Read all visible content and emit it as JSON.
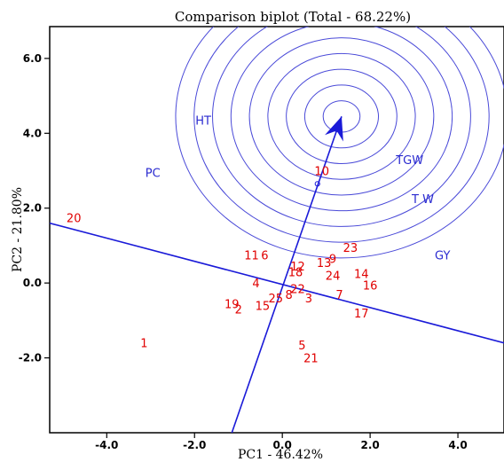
{
  "chart_data": {
    "type": "scatter",
    "title": "Comparison biplot (Total - 68.22%)",
    "xlabel": "PC1 - 46.42%",
    "ylabel": "PC2 - 21.80%",
    "xlim": [
      -5.3,
      5.05
    ],
    "ylim": [
      -4.0,
      6.85
    ],
    "xticks": [
      -4.0,
      -2.0,
      0.0,
      2.0,
      4.0
    ],
    "xtick_labels": [
      "-4.0",
      "-2.0",
      "0.0",
      "2.0",
      "4.0"
    ],
    "yticks": [
      -2.0,
      0.0,
      2.0,
      4.0,
      6.0
    ],
    "ytick_labels": [
      "-2.0",
      "0.0",
      "2.0",
      "4.0",
      "6.0"
    ],
    "colors": {
      "genotype": "#e00000",
      "trait": "#2a2ad0",
      "axis_line": "#1a1ad8",
      "circle": "#4a4ad8"
    },
    "genotypes": [
      {
        "label": "1",
        "x": -3.15,
        "y": -1.6
      },
      {
        "label": "2",
        "x": -1.0,
        "y": -0.7
      },
      {
        "label": "3",
        "x": 0.6,
        "y": -0.4
      },
      {
        "label": "4",
        "x": -0.6,
        "y": 0.0
      },
      {
        "label": "5",
        "x": 0.45,
        "y": -1.65
      },
      {
        "label": "6",
        "x": -0.4,
        "y": 0.75
      },
      {
        "label": "7",
        "x": 1.3,
        "y": -0.3
      },
      {
        "label": "8",
        "x": 0.15,
        "y": -0.3
      },
      {
        "label": "9",
        "x": 1.15,
        "y": 0.65
      },
      {
        "label": "10",
        "x": 0.9,
        "y": 3.0
      },
      {
        "label": "11",
        "x": -0.7,
        "y": 0.75
      },
      {
        "label": "12",
        "x": 0.35,
        "y": 0.45
      },
      {
        "label": "13",
        "x": 0.95,
        "y": 0.55
      },
      {
        "label": "14",
        "x": 1.8,
        "y": 0.25
      },
      {
        "label": "15",
        "x": -0.45,
        "y": -0.6
      },
      {
        "label": "16",
        "x": 2.0,
        "y": -0.05
      },
      {
        "label": "17",
        "x": 1.8,
        "y": -0.8
      },
      {
        "label": "18",
        "x": 0.3,
        "y": 0.3
      },
      {
        "label": "19",
        "x": -1.15,
        "y": -0.55
      },
      {
        "label": "20",
        "x": -4.75,
        "y": 1.75
      },
      {
        "label": "21",
        "x": 0.65,
        "y": -2.0
      },
      {
        "label": "22",
        "x": 0.35,
        "y": -0.15
      },
      {
        "label": "23",
        "x": 1.55,
        "y": 0.95
      },
      {
        "label": "24",
        "x": 1.15,
        "y": 0.2
      },
      {
        "label": "25",
        "x": -0.15,
        "y": -0.4
      }
    ],
    "traits": [
      {
        "label": "HT",
        "x": -1.8,
        "y": 4.35
      },
      {
        "label": "PC",
        "x": -2.95,
        "y": 2.95
      },
      {
        "label": "TGW",
        "x": 2.9,
        "y": 3.3
      },
      {
        "label": "T W",
        "x": 3.2,
        "y": 2.25
      },
      {
        "label": "GY",
        "x": 3.65,
        "y": 0.75
      }
    ],
    "average_environment_axis": {
      "from": [
        -1.15,
        -4.0
      ],
      "to": [
        1.35,
        4.45
      ]
    },
    "perpendicular_axis": {
      "from": [
        -5.3,
        1.6
      ],
      "to": [
        5.05,
        -1.6
      ]
    },
    "ideal_point": [
      1.35,
      4.45
    ],
    "concentric_radii": [
      0.42,
      0.84,
      1.26,
      1.68,
      2.1,
      2.52,
      2.94,
      3.36,
      3.78
    ],
    "environment_marker": [
      0.8,
      2.65
    ]
  }
}
